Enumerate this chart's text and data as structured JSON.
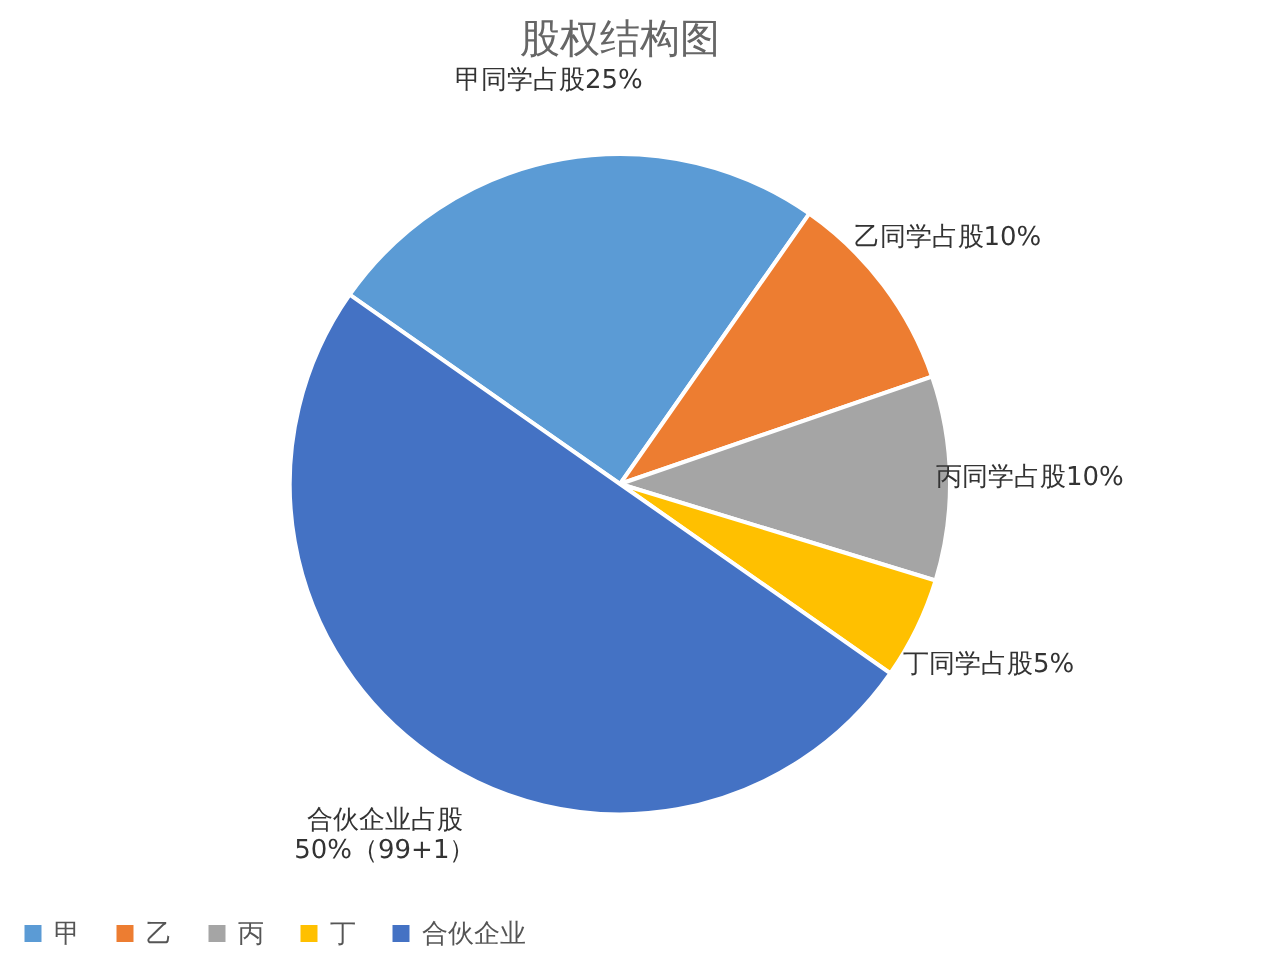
{
  "chart_data": {
    "type": "pie",
    "title": "股权结构图",
    "categories": [
      "甲",
      "乙",
      "丙",
      "丁",
      "合伙企业"
    ],
    "values": [
      25,
      10,
      10,
      5,
      50
    ],
    "colors": [
      "#5b9bd5",
      "#ed7d31",
      "#a5a5a5",
      "#ffc000",
      "#4472c4"
    ],
    "value_labels": [
      "甲同学占股25%",
      "乙同学占股10%",
      "丙同学占股10%",
      "丁同学占股5%",
      "合伙企业占股\n50%（99+1）"
    ],
    "legend": "bottom"
  }
}
